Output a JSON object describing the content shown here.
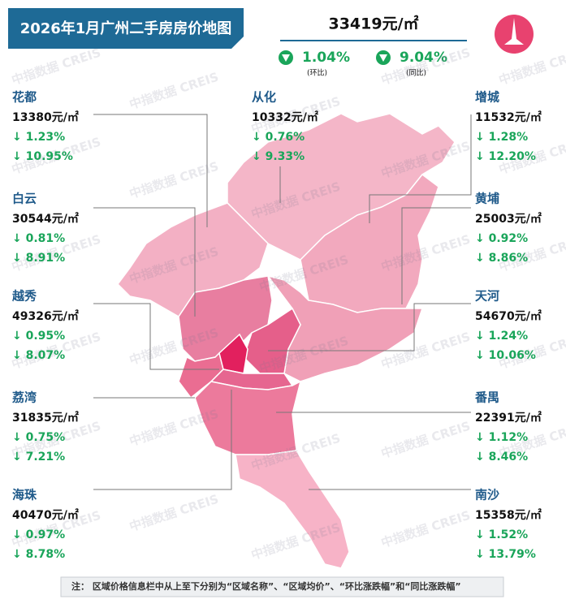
{
  "header": {
    "title": "2026年1月广州二手房房价地图",
    "overall": {
      "price": "33419元/㎡",
      "mom": {
        "value": "1.04%",
        "label": "(环比)"
      },
      "yoy": {
        "value": "9.04%",
        "label": "(同比)"
      }
    }
  },
  "districts": [
    {
      "name": "花都",
      "price": "13380元/㎡",
      "mom": "↓ 1.23%",
      "yoy": "↓ 10.95%"
    },
    {
      "name": "从化",
      "price": "10332元/㎡",
      "mom": "↓ 0.76%",
      "yoy": "↓ 9.33%"
    },
    {
      "name": "增城",
      "price": "11532元/㎡",
      "mom": "↓ 1.28%",
      "yoy": "↓ 12.20%"
    },
    {
      "name": "白云",
      "price": "30544元/㎡",
      "mom": "↓ 0.81%",
      "yoy": "↓ 8.91%"
    },
    {
      "name": "黄埔",
      "price": "25003元/㎡",
      "mom": "↓ 0.92%",
      "yoy": "↓ 8.86%"
    },
    {
      "name": "越秀",
      "price": "49326元/㎡",
      "mom": "↓ 0.95%",
      "yoy": "↓ 8.07%"
    },
    {
      "name": "天河",
      "price": "54670元/㎡",
      "mom": "↓ 1.24%",
      "yoy": "↓ 10.06%"
    },
    {
      "name": "荔湾",
      "price": "31835元/㎡",
      "mom": "↓ 0.75%",
      "yoy": "↓ 7.21%"
    },
    {
      "name": "番禺",
      "price": "22391元/㎡",
      "mom": "↓ 1.12%",
      "yoy": "↓ 8.46%"
    },
    {
      "name": "海珠",
      "price": "40470元/㎡",
      "mom": "↓ 0.97%",
      "yoy": "↓ 8.78%"
    },
    {
      "name": "南沙",
      "price": "15358元/㎡",
      "mom": "↓ 1.52%",
      "yoy": "↓ 13.79%"
    }
  ],
  "watermark": "中指数据 CREIS",
  "note": "注：  区域价格信息栏中从上至下分别为“区域名称”、“区域均价”、“环比涨跌幅”和“同比涨跌幅”"
}
